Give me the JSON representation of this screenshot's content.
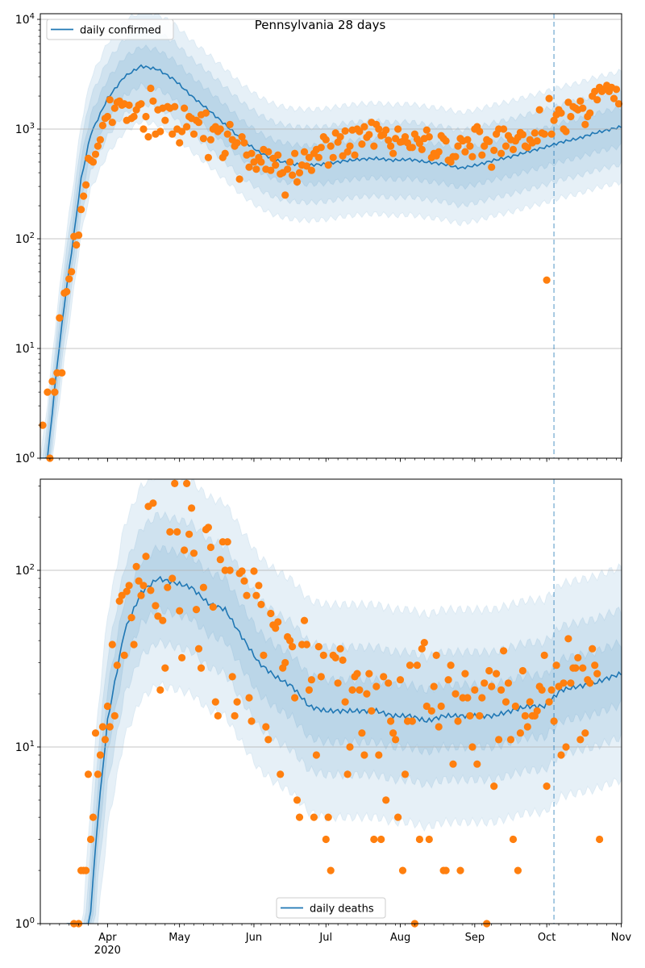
{
  "chart_data": [
    {
      "type": "line",
      "title": "Pennsylvania 28 days",
      "scale": "log",
      "ylim": [
        1,
        11220
      ],
      "xlim_days": [
        0,
        242
      ],
      "legend": {
        "label": "daily confirmed",
        "placement": "top-left"
      },
      "yticks": [
        {
          "base": "10",
          "exp": "0",
          "value": 1
        },
        {
          "base": "10",
          "exp": "1",
          "value": 10
        },
        {
          "base": "10",
          "exp": "2",
          "value": 100
        },
        {
          "base": "10",
          "exp": "3",
          "value": 1000
        },
        {
          "base": "10",
          "exp": "4",
          "value": 10000
        }
      ],
      "vline_day": 214,
      "band_factors": [
        3.2,
        2.2,
        1.5
      ],
      "median": [
        [
          0,
          0.3
        ],
        [
          3,
          1
        ],
        [
          7,
          7
        ],
        [
          10,
          25
        ],
        [
          14,
          110
        ],
        [
          17,
          350
        ],
        [
          21,
          900
        ],
        [
          28,
          1900
        ],
        [
          35,
          3000
        ],
        [
          42,
          3750
        ],
        [
          49,
          3500
        ],
        [
          56,
          2800
        ],
        [
          63,
          2000
        ],
        [
          70,
          1500
        ],
        [
          77,
          1100
        ],
        [
          84,
          800
        ],
        [
          91,
          620
        ],
        [
          98,
          520
        ],
        [
          105,
          480
        ],
        [
          112,
          470
        ],
        [
          119,
          480
        ],
        [
          126,
          510
        ],
        [
          133,
          530
        ],
        [
          140,
          540
        ],
        [
          147,
          520
        ],
        [
          154,
          530
        ],
        [
          161,
          500
        ],
        [
          168,
          480
        ],
        [
          175,
          440
        ],
        [
          182,
          470
        ],
        [
          189,
          520
        ],
        [
          196,
          560
        ],
        [
          203,
          620
        ],
        [
          210,
          680
        ],
        [
          217,
          760
        ],
        [
          224,
          820
        ],
        [
          231,
          920
        ],
        [
          238,
          1000
        ],
        [
          242,
          1050
        ]
      ],
      "observed": [
        null,
        2,
        null,
        4,
        1,
        5,
        4,
        6,
        19,
        6,
        32,
        33,
        43,
        50,
        105,
        88,
        108,
        185,
        245,
        310,
        540,
        520,
        500,
        590,
        700,
        800,
        1080,
        1250,
        1300,
        1850,
        1150,
        1550,
        1750,
        1800,
        1650,
        1700,
        1200,
        1650,
        1250,
        1300,
        1500,
        1650,
        1700,
        1000,
        1300,
        850,
        2350,
        1800,
        900,
        1500,
        950,
        1550,
        1200,
        1600,
        1550,
        900,
        1600,
        1000,
        750,
        950,
        1550,
        1050,
        1300,
        1250,
        900,
        1200,
        1150,
        1350,
        820,
        1400,
        550,
        800,
        1000,
        1050,
        950,
        1000,
        550,
        600,
        900,
        1100,
        800,
        700,
        750,
        350,
        850,
        750,
        580,
        450,
        600,
        500,
        430,
        550,
        500,
        650,
        430,
        620,
        420,
        540,
        470,
        580,
        390,
        400,
        250,
        430,
        500,
        380,
        600,
        330,
        400,
        470,
        620,
        460,
        550,
        420,
        600,
        650,
        550,
        680,
        850,
        800,
        470,
        700,
        550,
        920,
        760,
        850,
        570,
        960,
        620,
        700,
        980,
        580,
        1000,
        950,
        730,
        1050,
        840,
        890,
        1150,
        700,
        1100,
        1000,
        870,
        890,
        980,
        790,
        700,
        600,
        820,
        1000,
        760,
        770,
        850,
        750,
        680,
        680,
        900,
        810,
        740,
        650,
        820,
        980,
        850,
        550,
        600,
        570,
        620,
        870,
        820,
        780,
        520,
        500,
        560,
        560,
        700,
        820,
        780,
        620,
        800,
        700,
        560,
        1000,
        1050,
        950,
        580,
        700,
        800,
        770,
        450,
        640,
        900,
        1000,
        600,
        1000,
        700,
        870,
        800,
        650,
        780,
        840,
        930,
        890,
        700,
        680,
        800,
        750,
        920,
        780,
        1500,
        920,
        900,
        42,
        1900,
        900,
        1200,
        1350,
        1500,
        1400,
        1000,
        950,
        1750,
        1300,
        1600,
        1550,
        1500,
        1800,
        1550,
        1100,
        1300,
        1400,
        2000,
        2200,
        1850,
        2400,
        2200,
        2300,
        2500,
        2200,
        2400,
        1900,
        2300,
        1700
      ]
    },
    {
      "type": "line",
      "title": "",
      "scale": "log",
      "ylim": [
        1,
        328
      ],
      "xlim_days": [
        0,
        242
      ],
      "legend": {
        "label": "daily deaths",
        "placement": "bottom-center"
      },
      "yticks": [
        {
          "base": "10",
          "exp": "0",
          "value": 1
        },
        {
          "base": "10",
          "exp": "1",
          "value": 10
        },
        {
          "base": "10",
          "exp": "2",
          "value": 100
        }
      ],
      "xticks": [
        {
          "day": 28,
          "label": "Apr",
          "sublabel": "2020"
        },
        {
          "day": 58,
          "label": "May"
        },
        {
          "day": 89,
          "label": "Jun"
        },
        {
          "day": 119,
          "label": "Jul"
        },
        {
          "day": 150,
          "label": "Aug"
        },
        {
          "day": 181,
          "label": "Sep"
        },
        {
          "day": 211,
          "label": "Oct"
        },
        {
          "day": 242,
          "label": "Nov"
        }
      ],
      "vline_day": 214,
      "band_factors": [
        4.0,
        2.3,
        1.5
      ],
      "median": [
        [
          14,
          0.05
        ],
        [
          18,
          0.3
        ],
        [
          21,
          1.2
        ],
        [
          24,
          4
        ],
        [
          28,
          14
        ],
        [
          35,
          45
        ],
        [
          42,
          75
        ],
        [
          49,
          90
        ],
        [
          56,
          85
        ],
        [
          63,
          80
        ],
        [
          70,
          65
        ],
        [
          77,
          60
        ],
        [
          84,
          42
        ],
        [
          91,
          30
        ],
        [
          98,
          25
        ],
        [
          105,
          22
        ],
        [
          112,
          17
        ],
        [
          119,
          16
        ],
        [
          126,
          16
        ],
        [
          133,
          16
        ],
        [
          140,
          16
        ],
        [
          147,
          15
        ],
        [
          154,
          15
        ],
        [
          161,
          14
        ],
        [
          168,
          15
        ],
        [
          175,
          15
        ],
        [
          182,
          15
        ],
        [
          189,
          15
        ],
        [
          196,
          16
        ],
        [
          203,
          17
        ],
        [
          210,
          17
        ],
        [
          217,
          21
        ],
        [
          224,
          22
        ],
        [
          231,
          23
        ],
        [
          238,
          25
        ],
        [
          242,
          26
        ]
      ],
      "observed": [
        null,
        null,
        null,
        null,
        null,
        null,
        null,
        null,
        null,
        null,
        null,
        null,
        null,
        null,
        1,
        null,
        1,
        2,
        2,
        2,
        7,
        3,
        4,
        12,
        7,
        9,
        13,
        11,
        17,
        13,
        38,
        15,
        29,
        67,
        72,
        33,
        76,
        82,
        54,
        38,
        105,
        87,
        72,
        82,
        120,
        230,
        77,
        240,
        63,
        55,
        21,
        52,
        28,
        80,
        165,
        90,
        310,
        165,
        59,
        32,
        130,
        310,
        160,
        225,
        125,
        60,
        36,
        28,
        80,
        170,
        175,
        135,
        62,
        18,
        15,
        115,
        145,
        100,
        145,
        100,
        25,
        15,
        18,
        96,
        99,
        87,
        72,
        19,
        14,
        99,
        72,
        82,
        64,
        33,
        13,
        11,
        57,
        49,
        47,
        51,
        7,
        28,
        30,
        42,
        40,
        37,
        19,
        5,
        4,
        38,
        52,
        38,
        21,
        24,
        4,
        9,
        37,
        25,
        33,
        3,
        4,
        2,
        33,
        32,
        23,
        36,
        31,
        18,
        7,
        10,
        21,
        25,
        26,
        21,
        12,
        9,
        20,
        26,
        16,
        3,
        22,
        9,
        3,
        25,
        5,
        23,
        14,
        12,
        11,
        4,
        24,
        2,
        7,
        14,
        29,
        14,
        1,
        29,
        3,
        36,
        39,
        17,
        3,
        16,
        22,
        33,
        13,
        17,
        2,
        2,
        24,
        29,
        8,
        20,
        14,
        2,
        19,
        26,
        19,
        15,
        10,
        21,
        8,
        15,
        19,
        23,
        1,
        27,
        22,
        6,
        26,
        11,
        21,
        35,
        18,
        23,
        11,
        3,
        17,
        2,
        12,
        27,
        15,
        13,
        18,
        15,
        15,
        16,
        22,
        21,
        33,
        6,
        18,
        21,
        14,
        29,
        22,
        9,
        23,
        10,
        41,
        23,
        28,
        28,
        32,
        11,
        28,
        12,
        24,
        23,
        36,
        29,
        26,
        3
      ],
      "colors": {
        "median": "#1f77b4",
        "observed": "#ff7f0e",
        "band": "#1f77b4",
        "vline": "#1f77b4"
      }
    }
  ]
}
